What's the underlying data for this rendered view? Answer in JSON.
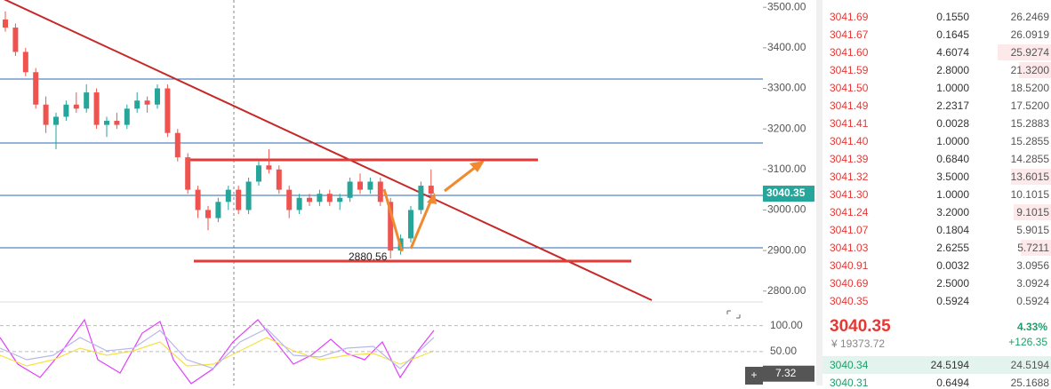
{
  "chart_data": {
    "type": "candlestick",
    "open": [
      3470,
      3450,
      3390,
      3340,
      3260,
      3210,
      3230,
      3260,
      3250,
      3290,
      3210,
      3220,
      3210,
      3250,
      3270,
      3260,
      3300,
      3190,
      3130,
      3050,
      3000,
      2980,
      3020,
      3050,
      3000,
      3070,
      3110,
      3100,
      3050,
      3000,
      3030,
      3020,
      3040,
      3020,
      3030,
      3070,
      3050,
      3070,
      3020,
      2900,
      2930,
      3000,
      3060
    ],
    "high": [
      3490,
      3460,
      3400,
      3350,
      3280,
      3240,
      3270,
      3290,
      3310,
      3300,
      3230,
      3240,
      3260,
      3290,
      3280,
      3310,
      3310,
      3200,
      3140,
      3060,
      3010,
      3030,
      3060,
      3060,
      3080,
      3120,
      3150,
      3110,
      3060,
      3040,
      3040,
      3050,
      3050,
      3040,
      3080,
      3090,
      3080,
      3080,
      3030,
      2940,
      3010,
      3070,
      3100
    ],
    "low": [
      3440,
      3380,
      3330,
      3250,
      3190,
      3150,
      3220,
      3240,
      3240,
      3200,
      3180,
      3200,
      3200,
      3240,
      3240,
      3250,
      3180,
      3120,
      3040,
      2980,
      2950,
      2970,
      3000,
      2990,
      2990,
      3060,
      3090,
      3040,
      2980,
      2990,
      3010,
      3010,
      3010,
      3000,
      3020,
      3040,
      3040,
      3010,
      2880.56,
      2890,
      2920,
      2990,
      3030
    ],
    "close": [
      3450,
      3390,
      3340,
      3260,
      3210,
      3230,
      3260,
      3250,
      3290,
      3210,
      3220,
      3210,
      3250,
      3270,
      3260,
      3300,
      3190,
      3130,
      3050,
      3000,
      2980,
      3020,
      3050,
      3000,
      3070,
      3110,
      3100,
      3050,
      3000,
      3030,
      3020,
      3040,
      3020,
      3030,
      3070,
      3050,
      3070,
      3020,
      2900,
      2930,
      3000,
      3060,
      3040.35
    ],
    "up_color": "#26a69a",
    "down_color": "#ef5350",
    "ylim": [
      2760,
      3518
    ],
    "yticks": [
      {
        "value": 2800,
        "label": "2800.00"
      },
      {
        "value": 2900,
        "label": "2900.00"
      },
      {
        "value": 3000,
        "label": "3000.00"
      },
      {
        "value": 3100,
        "label": "3100.00"
      },
      {
        "value": 3200,
        "label": "3200.00"
      },
      {
        "value": 3300,
        "label": "3300.00"
      },
      {
        "value": 3400,
        "label": "3400.00"
      },
      {
        "value": 3500,
        "label": "3500.00"
      }
    ],
    "last_price_label": "3040.35",
    "low_annotation": "2880.56"
  },
  "indicator": {
    "ylim": [
      0,
      120
    ],
    "yticks": [
      {
        "value": 50,
        "label": "50.00"
      },
      {
        "value": 100,
        "label": "100.00"
      }
    ],
    "value": 7.32
  },
  "order_book": {
    "asks": [
      [
        "3041.69",
        "0.1550",
        "26.2469"
      ],
      [
        "3041.67",
        "0.1645",
        "26.0919"
      ],
      [
        "3041.60",
        "4.6074",
        "25.9274"
      ],
      [
        "3041.59",
        "2.8000",
        "21.3200"
      ],
      [
        "3041.50",
        "1.0000",
        "18.5200"
      ],
      [
        "3041.49",
        "2.2317",
        "17.5200"
      ],
      [
        "3041.41",
        "0.0028",
        "15.2883"
      ],
      [
        "3041.40",
        "1.0000",
        "15.2855"
      ],
      [
        "3041.39",
        "0.6840",
        "14.2855"
      ],
      [
        "3041.32",
        "3.5000",
        "13.6015"
      ],
      [
        "3041.30",
        "1.0000",
        "10.1015"
      ],
      [
        "3041.24",
        "3.2000",
        "9.1015"
      ],
      [
        "3041.07",
        "0.1804",
        "5.9015"
      ],
      [
        "3041.03",
        "2.6255",
        "5.7211"
      ],
      [
        "3040.91",
        "0.0032",
        "3.0956"
      ],
      [
        "3040.69",
        "2.5000",
        "3.0924"
      ],
      [
        "3040.35",
        "0.5924",
        "0.5924"
      ]
    ],
    "last_price": "3040.35",
    "cny": "¥ 19373.72",
    "change_pct": "4.33%",
    "change": "+126.35",
    "bids": [
      [
        "3040.34",
        "24.5194",
        "24.5194"
      ],
      [
        "3040.31",
        "0.6494",
        "25.1688"
      ]
    ]
  }
}
